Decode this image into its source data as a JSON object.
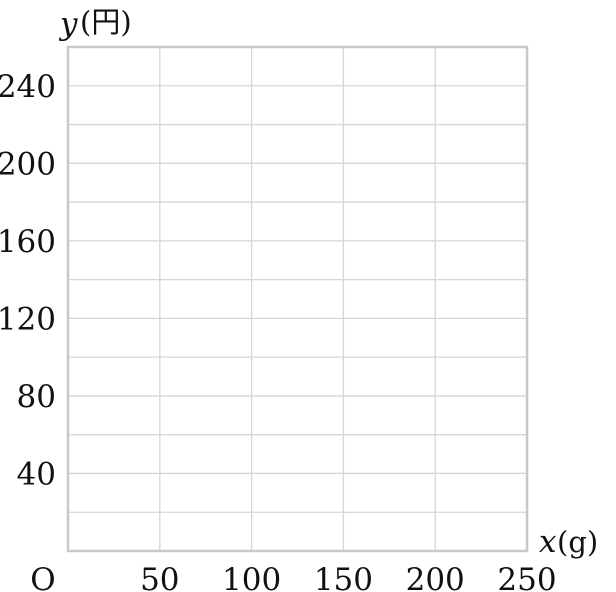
{
  "chart_data": {
    "type": "line",
    "title": "",
    "xlabel": {
      "var": "x",
      "unit": "(g)"
    },
    "ylabel": {
      "var": "y",
      "unit": "(円)"
    },
    "origin_label": "O",
    "xlim": [
      0,
      250
    ],
    "ylim": [
      0,
      260
    ],
    "x_ticks": [
      50,
      100,
      150,
      200,
      250
    ],
    "x_tick_labels": [
      "50",
      "100",
      "150",
      "200",
      "250"
    ],
    "x_grid_step": 50,
    "y_ticks": [
      40,
      80,
      120,
      160,
      200,
      240
    ],
    "y_tick_labels": [
      "40",
      "80",
      "120",
      "160",
      "200",
      "240"
    ],
    "y_grid_step": 20,
    "grid": true,
    "series": [],
    "colors": {
      "grid": "#d6d6d6",
      "frame": "#c8c8c8"
    }
  }
}
